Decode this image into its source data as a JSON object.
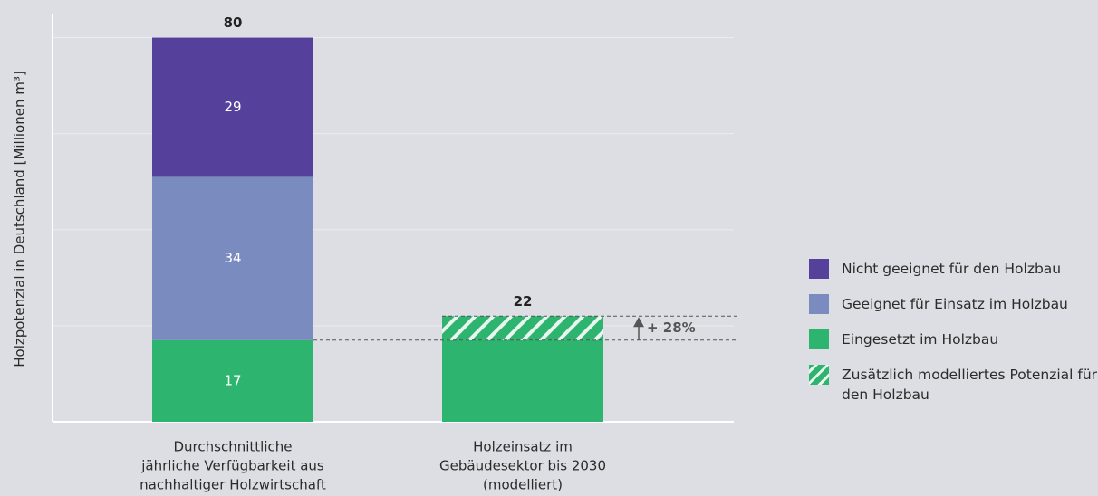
{
  "chart_data": {
    "type": "stacked_bar",
    "y_label": "Holzpotenzial in Deutschland [Millionen m³]",
    "categories": [
      [
        "Durchschnittliche",
        "jährliche Verfügbarkeit aus",
        "nachhaltiger Holzwirtschaft"
      ],
      [
        "Holzeinsatz im",
        "Gebäudesektor bis 2030",
        "(modelliert)"
      ]
    ],
    "series": [
      {
        "name": "Eingesetzt im Holzbau",
        "color": "#2db56f",
        "values": [
          17,
          17
        ],
        "value_labels": [
          "17",
          null
        ]
      },
      {
        "name": "Geeignet für Einsatz im Holzbau",
        "color": "#7a8cbf",
        "values": [
          34,
          null
        ],
        "value_labels": [
          "34",
          null
        ]
      },
      {
        "name": "Nicht geeignet für den Holzbau",
        "color": "#55409c",
        "values": [
          29,
          null
        ],
        "value_labels": [
          "29",
          null
        ]
      },
      {
        "name": "Zusätzlich modelliertes Potenzial für den Holzbau",
        "color": "#2db56f",
        "hatched": true,
        "values": [
          null,
          5
        ],
        "value_labels": [
          null,
          null
        ]
      }
    ],
    "totals": [
      80,
      22
    ],
    "annotation": "+ 28%",
    "ylim": [
      0,
      85
    ],
    "grid_lines": [
      20,
      40,
      60,
      80
    ],
    "legend": "right"
  }
}
